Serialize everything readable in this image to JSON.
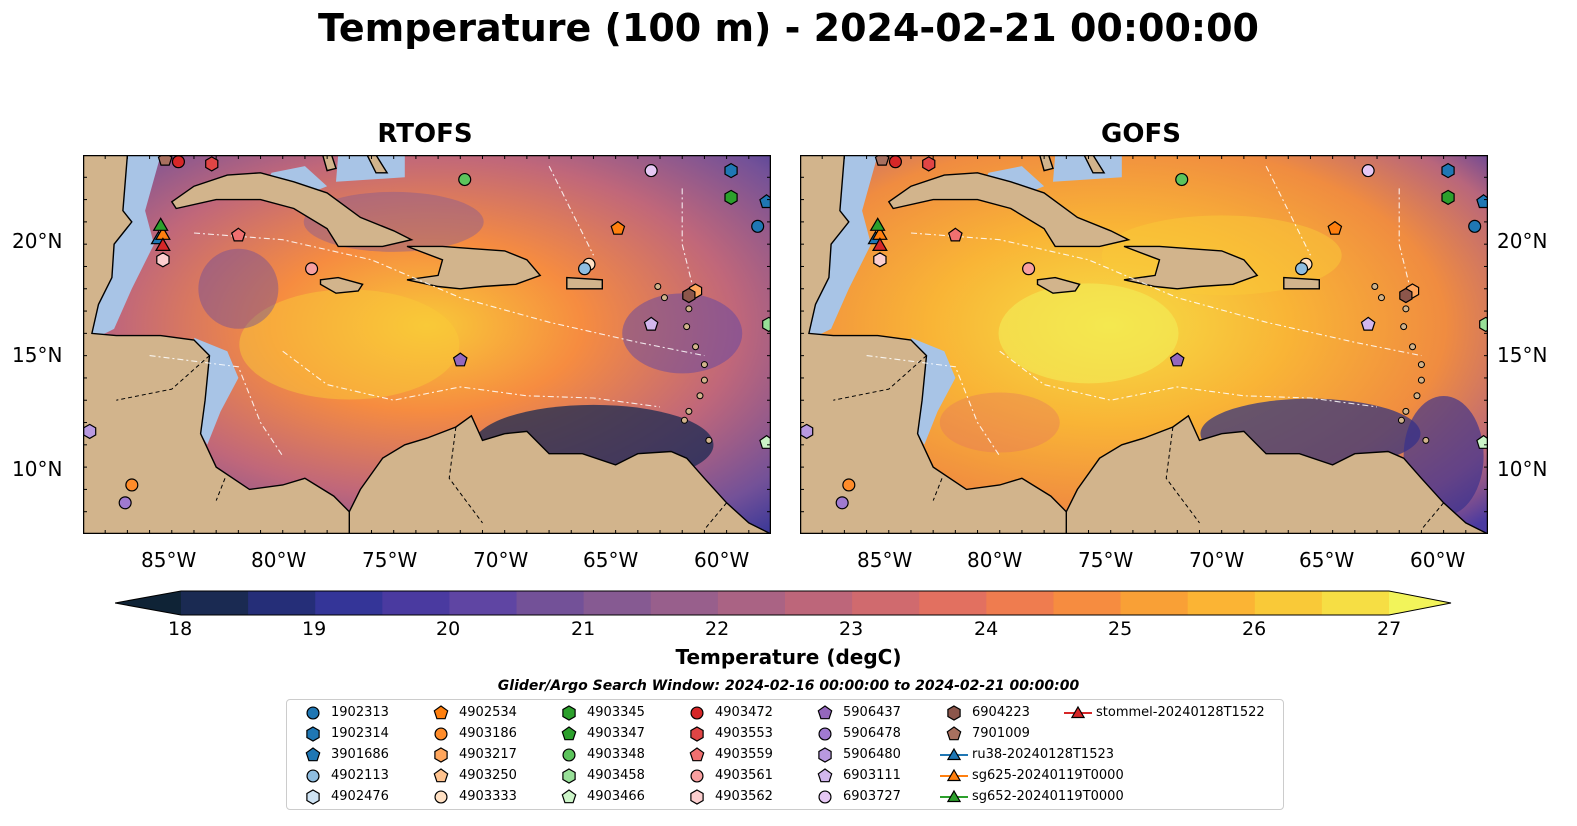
{
  "title": "Temperature (100 m) - 2024-02-21 00:00:00",
  "panels": [
    {
      "title": "RTOFS"
    },
    {
      "title": "GOFS"
    }
  ],
  "chart_data": {
    "type": "heatmap",
    "title": "Temperature (100 m) - 2024-02-21 00:00:00",
    "subplots": [
      "RTOFS",
      "GOFS"
    ],
    "lat_ticks": [
      "20°N",
      "15°N",
      "10°N"
    ],
    "lon_ticks": [
      "85°W",
      "80°W",
      "75°W",
      "70°W",
      "65°W",
      "60°W"
    ],
    "lon_range": [
      -89,
      -58
    ],
    "lat_range": [
      7,
      24
    ],
    "colorbar": {
      "label": "Temperature (degC)",
      "min": 18,
      "max": 27,
      "step": 0.5,
      "ticks": [
        "18",
        "19",
        "20",
        "21",
        "22",
        "23",
        "24",
        "25",
        "26",
        "27"
      ],
      "extend": "both"
    }
  },
  "search_window": "Glider/Argo Search Window: 2024-02-16 00:00:00 to 2024-02-21 00:00:00",
  "legend": [
    {
      "label": "1902313",
      "marker": "circle",
      "color": "#1f77b4"
    },
    {
      "label": "1902314",
      "marker": "hexagon",
      "color": "#1f77b4"
    },
    {
      "label": "3901686",
      "marker": "pentagon",
      "color": "#1f77b4"
    },
    {
      "label": "4902113",
      "marker": "circle",
      "color": "#8fbde0"
    },
    {
      "label": "4902476",
      "marker": "hexagon",
      "color": "#cfe3f3"
    },
    {
      "label": "4902534",
      "marker": "pentagon",
      "color": "#ff7f0e"
    },
    {
      "label": "4903186",
      "marker": "circle",
      "color": "#ff8c2a"
    },
    {
      "label": "4903217",
      "marker": "hexagon",
      "color": "#ffa65c"
    },
    {
      "label": "4903250",
      "marker": "pentagon",
      "color": "#ffc38f"
    },
    {
      "label": "4903333",
      "marker": "circle",
      "color": "#ffe0c3"
    },
    {
      "label": "4903345",
      "marker": "hexagon",
      "color": "#2ca02c"
    },
    {
      "label": "4903347",
      "marker": "pentagon",
      "color": "#2ca02c"
    },
    {
      "label": "4903348",
      "marker": "circle",
      "color": "#5cc45c"
    },
    {
      "label": "4903458",
      "marker": "hexagon",
      "color": "#98e098"
    },
    {
      "label": "4903466",
      "marker": "pentagon",
      "color": "#ccf5c8"
    },
    {
      "label": "4903472",
      "marker": "circle",
      "color": "#d62728"
    },
    {
      "label": "4903553",
      "marker": "hexagon",
      "color": "#e04545"
    },
    {
      "label": "4903559",
      "marker": "pentagon",
      "color": "#f07070"
    },
    {
      "label": "4903561",
      "marker": "circle",
      "color": "#f8a0a0"
    },
    {
      "label": "4903562",
      "marker": "hexagon",
      "color": "#fccfcf"
    },
    {
      "label": "5906437",
      "marker": "pentagon",
      "color": "#9467bd"
    },
    {
      "label": "5906478",
      "marker": "circle",
      "color": "#a07ad0"
    },
    {
      "label": "5906480",
      "marker": "hexagon",
      "color": "#b899e0"
    },
    {
      "label": "6903111",
      "marker": "pentagon",
      "color": "#d2b7ee"
    },
    {
      "label": "6903727",
      "marker": "circle",
      "color": "#e6c8f4"
    },
    {
      "label": "6904223",
      "marker": "hexagon",
      "color": "#8c564b"
    },
    {
      "label": "7901009",
      "marker": "pentagon",
      "color": "#a8705f"
    },
    {
      "label": "ru38-20240128T1523",
      "marker": "triangle-line",
      "color": "#1f77b4"
    },
    {
      "label": "sg625-20240119T0000",
      "marker": "triangle-line",
      "color": "#ff7f0e"
    },
    {
      "label": "sg652-20240119T0000",
      "marker": "triangle-line",
      "color": "#2ca02c"
    },
    {
      "label": "stommel-20240128T1522",
      "marker": "triangle-line",
      "color": "#d62728"
    }
  ],
  "colors": {
    "land": "#d2b48c",
    "shallow_water": "#a8c4e6",
    "outline": "#000000"
  }
}
